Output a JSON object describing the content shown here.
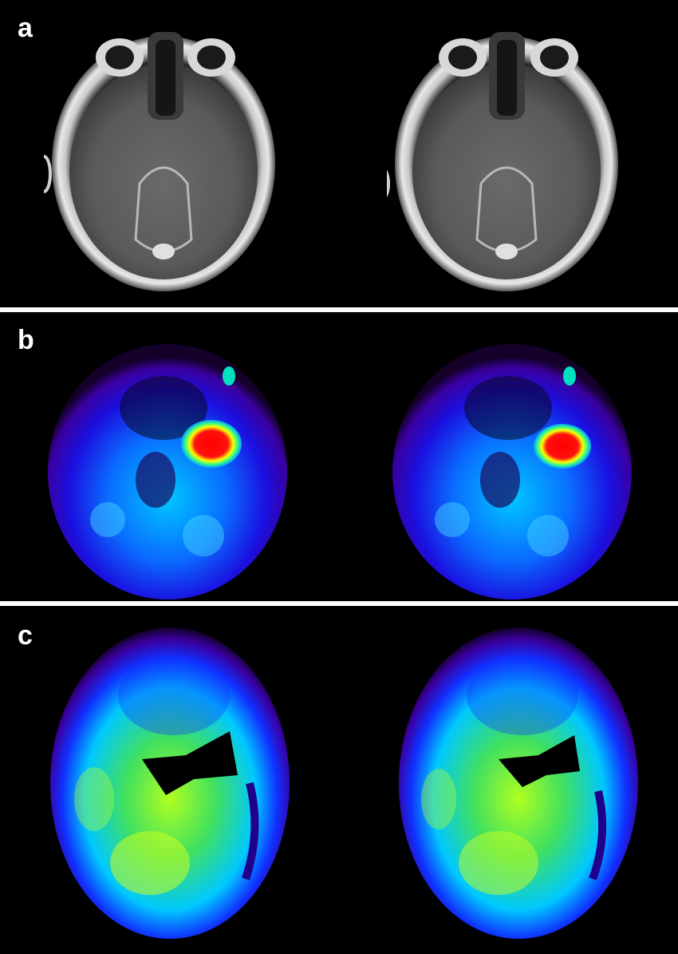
{
  "panels": [
    {
      "label": "a",
      "kind": "mri"
    },
    {
      "label": "b",
      "kind": "pet-focal"
    },
    {
      "label": "c",
      "kind": "pet-diffuse"
    }
  ],
  "colors": {
    "background": "#000000",
    "divider": "#ffffff",
    "pet_scale": [
      "#1a0033",
      "#3a00a0",
      "#1010ff",
      "#00b0ff",
      "#00ffd0",
      "#40ff40",
      "#ffff00",
      "#ff0000"
    ]
  }
}
